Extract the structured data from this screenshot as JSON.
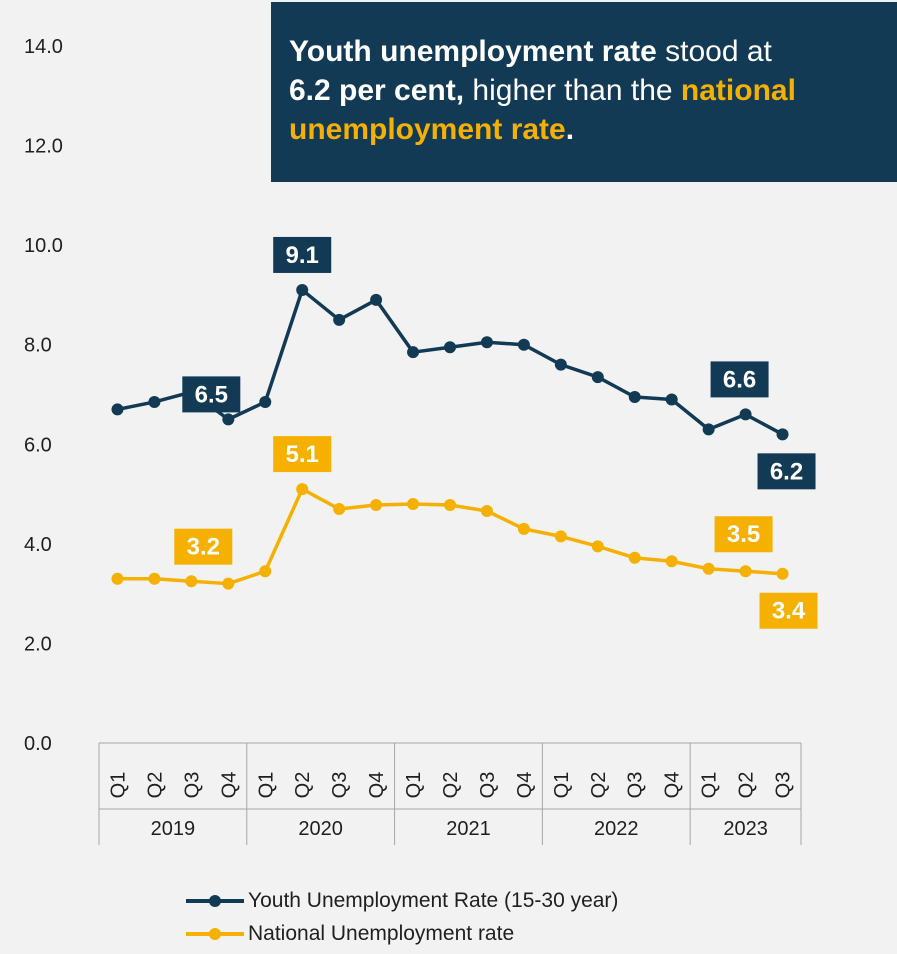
{
  "callout": {
    "part1": "Youth unemployment rate",
    "part2": " stood at ",
    "part3": "6.2 per cent,",
    "part4": " higher than the ",
    "part5": "national unemployment rate",
    "part6": "."
  },
  "colors": {
    "youth": "#123a55",
    "national": "#f5b000",
    "background": "#f2f2f2",
    "axis": "#a6a6a6"
  },
  "chart_data": {
    "type": "line",
    "title": "",
    "ylim": [
      0,
      14
    ],
    "y_ticks": [
      "0.0",
      "2.0",
      "4.0",
      "6.0",
      "8.0",
      "10.0",
      "12.0",
      "14.0"
    ],
    "quarters": [
      "Q1",
      "Q2",
      "Q3",
      "Q4",
      "Q1",
      "Q2",
      "Q3",
      "Q4",
      "Q1",
      "Q2",
      "Q3",
      "Q4",
      "Q1",
      "Q2",
      "Q3",
      "Q4",
      "Q1",
      "Q2",
      "Q3"
    ],
    "years": [
      {
        "label": "2019",
        "count": 4
      },
      {
        "label": "2020",
        "count": 4
      },
      {
        "label": "2021",
        "count": 4
      },
      {
        "label": "2022",
        "count": 4
      },
      {
        "label": "2023",
        "count": 3
      }
    ],
    "grid": false,
    "legend_position": "bottom",
    "series": [
      {
        "name": "Youth Unemployment Rate (15-30 year)",
        "color": "#123a55",
        "values": [
          6.7,
          6.85,
          7.05,
          6.5,
          6.85,
          9.1,
          8.5,
          8.9,
          7.85,
          7.95,
          8.05,
          8.0,
          7.6,
          7.35,
          6.95,
          6.9,
          6.3,
          6.6,
          6.2
        ],
        "labels": [
          {
            "index": 3,
            "text": "6.5"
          },
          {
            "index": 5,
            "text": "9.1"
          },
          {
            "index": 17,
            "text": "6.6"
          },
          {
            "index": 18,
            "text": "6.2"
          }
        ]
      },
      {
        "name": "National Unemployment rate",
        "color": "#f5b000",
        "values": [
          3.3,
          3.3,
          3.25,
          3.2,
          3.45,
          5.1,
          4.7,
          4.78,
          4.8,
          4.78,
          4.66,
          4.3,
          4.15,
          3.95,
          3.72,
          3.65,
          3.5,
          3.45,
          3.4
        ],
        "labels": [
          {
            "index": 3,
            "text": "3.2"
          },
          {
            "index": 5,
            "text": "5.1"
          },
          {
            "index": 17,
            "text": "3.5"
          },
          {
            "index": 18,
            "text": "3.4"
          }
        ]
      }
    ]
  }
}
